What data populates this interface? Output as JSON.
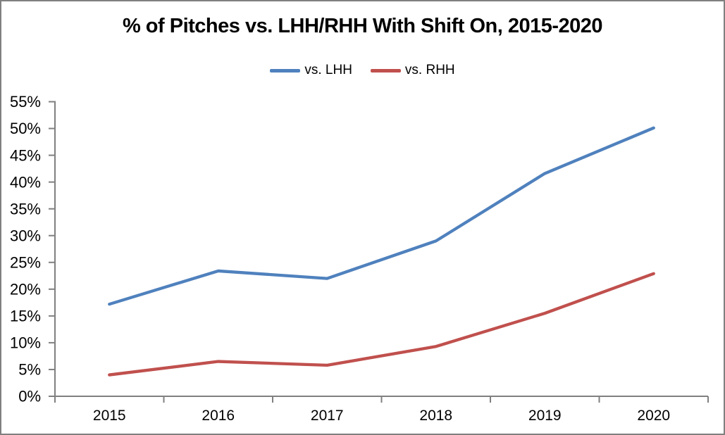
{
  "window": {
    "background": "#FFFFFF",
    "border_color": "#808080"
  },
  "chart_data": {
    "type": "line",
    "title": "% of Pitches vs. LHH/RHH With Shift On, 2015-2020",
    "categories": [
      "2015",
      "2016",
      "2017",
      "2018",
      "2019",
      "2020"
    ],
    "series": [
      {
        "name": "vs. LHH",
        "color": "#4F81BD",
        "values": [
          17.2,
          23.4,
          22.0,
          29.0,
          41.6,
          50.1
        ]
      },
      {
        "name": "vs. RHH",
        "color": "#C0504D",
        "values": [
          4.0,
          6.5,
          5.8,
          9.3,
          15.5,
          22.9
        ]
      }
    ],
    "xlabel": "",
    "ylabel": "",
    "ylim": [
      0,
      55
    ],
    "y_tick_step": 5,
    "y_tick_labels": [
      "0%",
      "5%",
      "10%",
      "15%",
      "20%",
      "25%",
      "30%",
      "35%",
      "40%",
      "45%",
      "50%",
      "55%"
    ],
    "grid": false,
    "legend_position": "top-center",
    "axis_color": "#808080",
    "text_color": "#000000"
  }
}
